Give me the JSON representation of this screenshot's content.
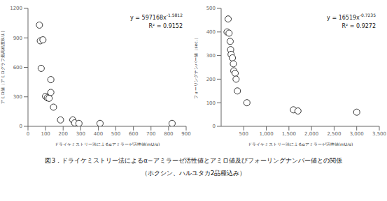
{
  "caption": [
    "図3．ドライケミストリー法によるα−アミラーゼ活性値とアミロ値及びフォーリングナンバー値との関係",
    "（ホクシン、ハルユタカ2品種込み）"
  ],
  "chart_data": [
    {
      "type": "scatter",
      "xlabel": "ドライケミストリー法によるαアミラーゼ活性値(mU/g)",
      "ylabel": "アミロ値（アミログラフ最高粘度B.U.)",
      "x": [
        65,
        70,
        75,
        85,
        100,
        110,
        120,
        130,
        130,
        145,
        185,
        255,
        265,
        290,
        410,
        820
      ],
      "values": [
        1030,
        870,
        590,
        880,
        305,
        290,
        285,
        475,
        345,
        195,
        65,
        65,
        35,
        30,
        30,
        30
      ],
      "color": "#333333",
      "marker": "hollow",
      "xlim": [
        0,
        900
      ],
      "ylim": [
        0,
        1200
      ],
      "xticks": [
        0,
        100,
        200,
        300,
        400,
        500,
        600,
        700,
        800,
        900
      ],
      "yticks": [
        0,
        300,
        600,
        900,
        1200
      ],
      "grid": false,
      "annotations": [
        {
          "text": "y = 597168x",
          "superscript": "-1.5812"
        },
        {
          "text": "R² = 0.9152"
        }
      ]
    },
    {
      "type": "scatter",
      "xlabel": "ドライケミストリー法によるαアミラーゼ活性値(mU/g)",
      "ylabel": "フォーリングナンバー値（sec.）",
      "x": [
        130,
        155,
        175,
        200,
        210,
        220,
        250,
        270,
        280,
        310,
        330,
        360,
        570,
        1600,
        1700,
        3000
      ],
      "values": [
        400,
        455,
        395,
        360,
        325,
        305,
        290,
        265,
        235,
        225,
        200,
        150,
        100,
        70,
        65,
        60
      ],
      "color": "#333333",
      "marker": "hollow",
      "xlim": [
        0,
        3500
      ],
      "ylim": [
        0,
        500
      ],
      "xticks": [
        500,
        {
          "value": 1000,
          "label": "1,000"
        },
        {
          "value": 1500,
          "label": "1,500"
        },
        {
          "value": 2000,
          "label": "2,000"
        },
        {
          "value": 2500,
          "label": "2,500"
        },
        {
          "value": 3000,
          "label": "3,000"
        },
        {
          "value": 3500,
          "label": "3,500"
        }
      ],
      "yticks": [
        0,
        100,
        200,
        300,
        400,
        500
      ],
      "grid": false,
      "annotations": [
        {
          "text": "y = 16519x",
          "superscript": "-0.7235"
        },
        {
          "text": "R² = 0.9272"
        }
      ]
    }
  ]
}
